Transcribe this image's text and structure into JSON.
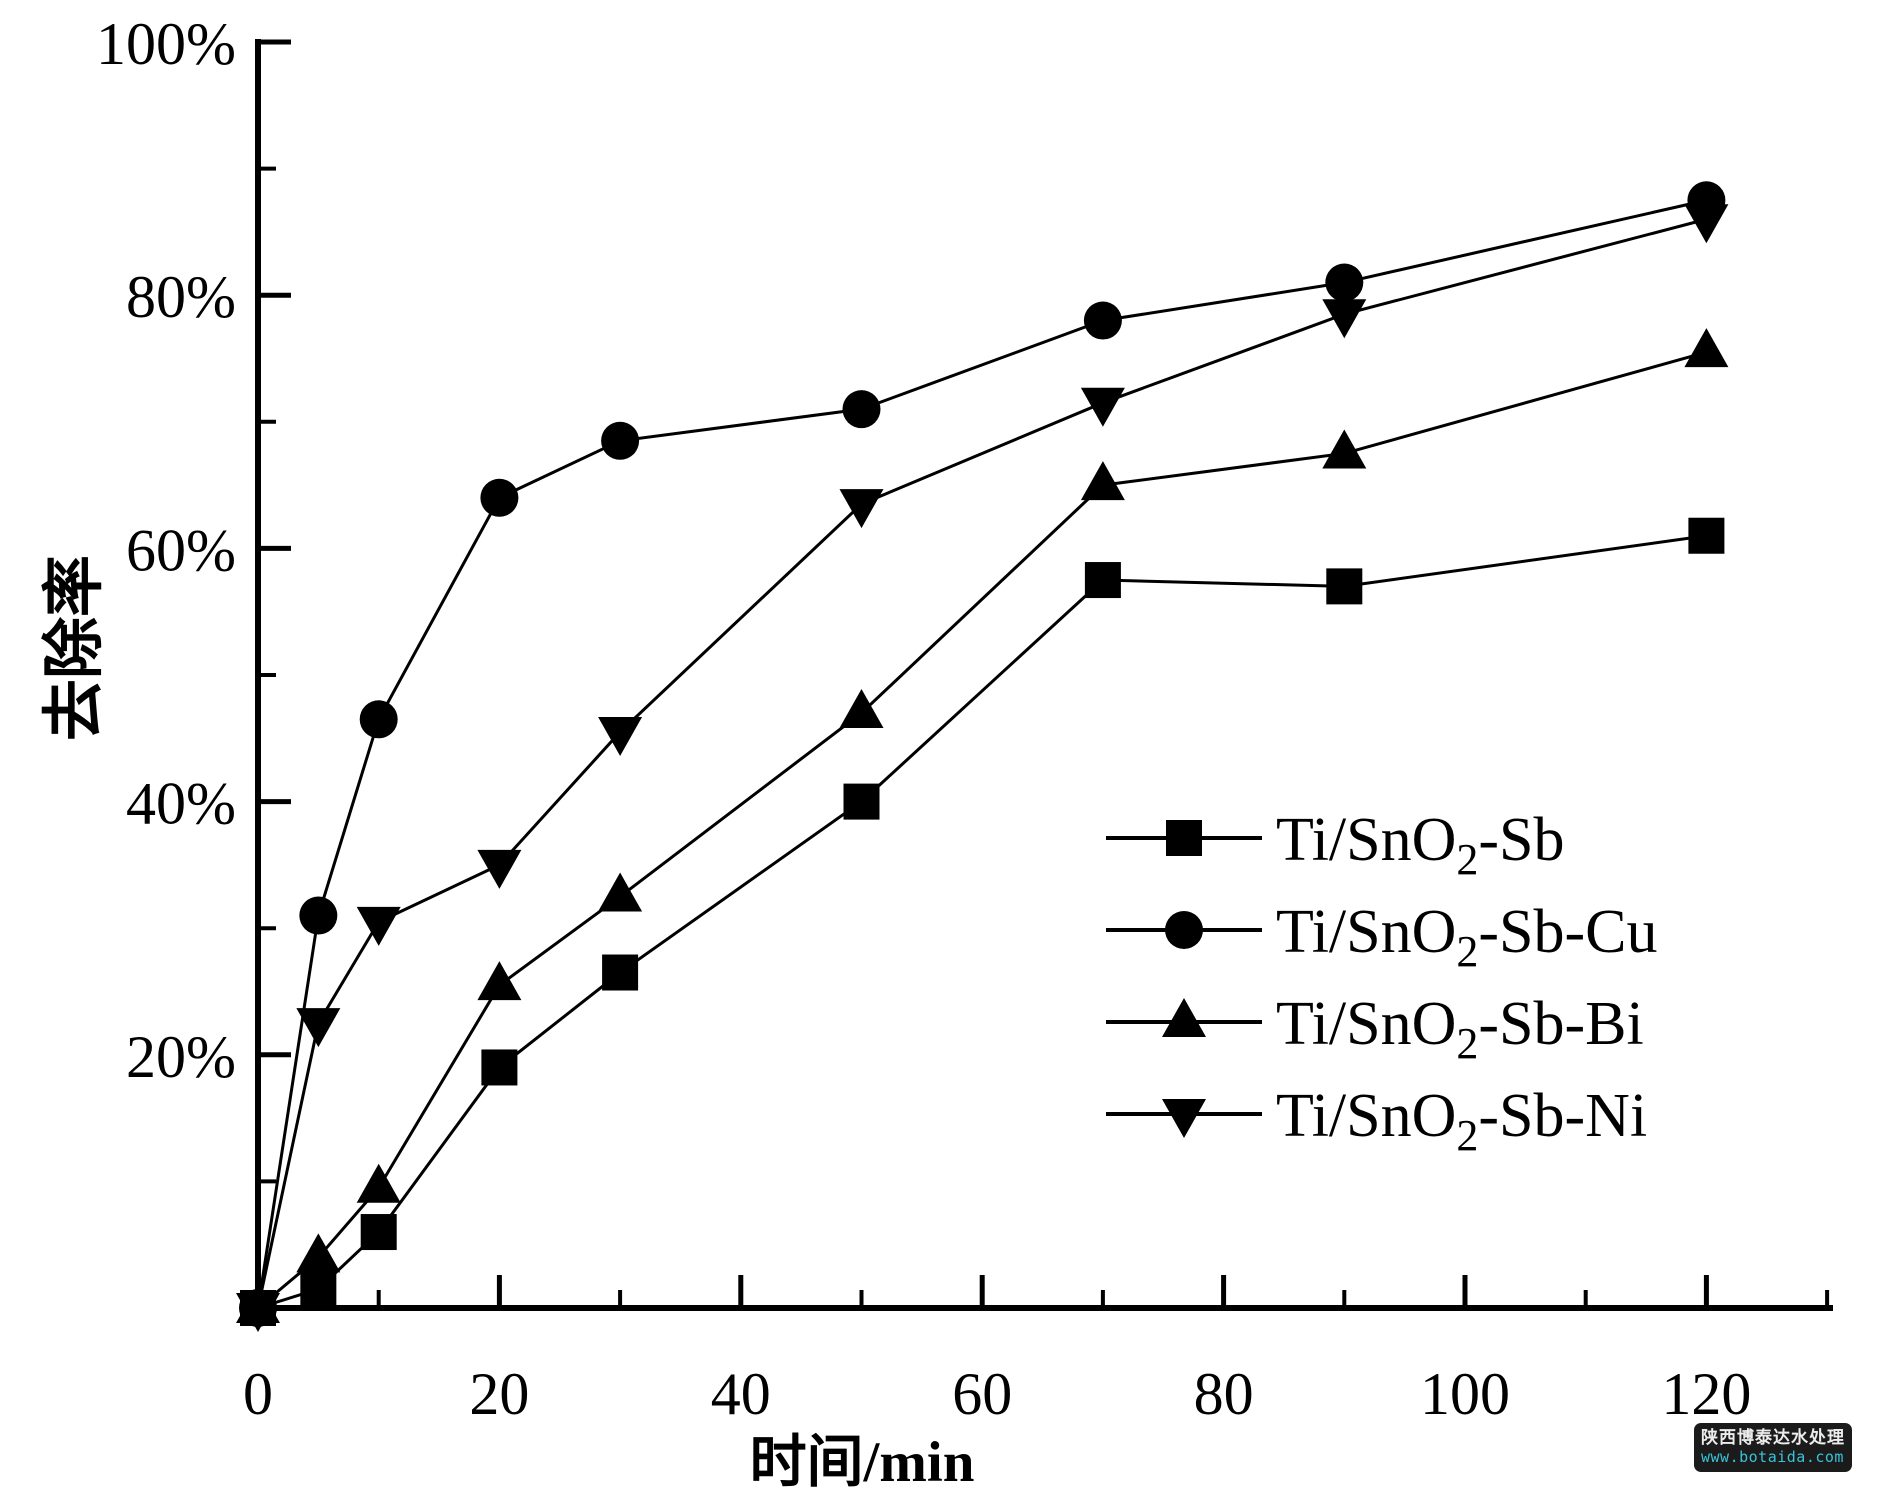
{
  "chart_data": {
    "type": "line",
    "title": "",
    "xlabel": "时间/min",
    "ylabel": "去除率",
    "xlim": [
      0,
      131.5
    ],
    "ylim": [
      0,
      100
    ],
    "grid": false,
    "legend_position": "inside-lower-right",
    "x_major_ticks": [
      0,
      20,
      40,
      60,
      80,
      100,
      120
    ],
    "x_tick_labels": [
      "0",
      "20",
      "40",
      "60",
      "80",
      "100",
      "120"
    ],
    "x_minor_ticks": [
      10,
      30,
      50,
      70,
      90,
      110,
      130
    ],
    "y_major_ticks": [
      20,
      40,
      60,
      80,
      100
    ],
    "y_tick_labels": [
      "20%",
      "40%",
      "60%",
      "80%",
      "100%"
    ],
    "y_minor_ticks": [
      10,
      30,
      50,
      70,
      90
    ],
    "x": [
      0,
      5,
      10,
      20,
      30,
      50,
      70,
      90,
      120
    ],
    "series": [
      {
        "name": "Ti/SnO2-Sb",
        "marker": "square",
        "label_pre": "Ti/SnO",
        "label_sub": "2",
        "label_post": "-Sb",
        "values": [
          0,
          1.5,
          6,
          19,
          26.5,
          40,
          57.5,
          57,
          61
        ]
      },
      {
        "name": "Ti/SnO2-Sb-Cu",
        "marker": "circle",
        "label_pre": "Ti/SnO",
        "label_sub": "2",
        "label_post": "-Sb-Cu",
        "values": [
          0,
          31,
          46.5,
          64,
          68.5,
          71,
          78,
          81,
          87.5
        ]
      },
      {
        "name": "Ti/SnO2-Sb-Bi",
        "marker": "triangle-up",
        "label_pre": "Ti/SnO",
        "label_sub": "2",
        "label_post": "-Sb-Bi",
        "values": [
          0,
          4,
          9.5,
          25.5,
          32.5,
          47,
          65,
          67.5,
          75.5
        ]
      },
      {
        "name": "Ti/SnO2-Sb-Ni",
        "marker": "triangle-down",
        "label_pre": "Ti/SnO",
        "label_sub": "2",
        "label_post": "-Sb-Ni",
        "values": [
          0,
          22.5,
          30.5,
          35,
          45.5,
          63.5,
          71.5,
          78.5,
          86
        ]
      }
    ],
    "line_color": "#000000",
    "background": "#ffffff"
  },
  "watermark": {
    "line1": "陕西博泰达水处理",
    "line2": "www.botaida.com",
    "bg": "#1b1b1b",
    "line1_color": "#ececec",
    "line2_color": "#38c2d8"
  }
}
